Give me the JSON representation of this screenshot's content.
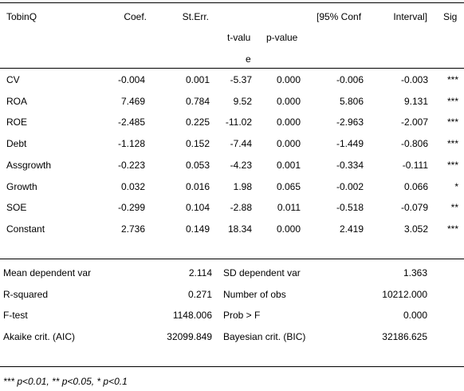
{
  "header": {
    "var": "TobinQ",
    "coef": "Coef.",
    "se": "St.Err.",
    "t_line1": "t-valu",
    "t_line2": "e",
    "p": "p-value",
    "ci_low": "[95% Conf",
    "ci_high": "Interval]",
    "sig": "Sig"
  },
  "rows": [
    {
      "name": "CV",
      "coef": "-0.004",
      "se": "0.001",
      "t": "-5.37",
      "p": "0.000",
      "lo": "-0.006",
      "hi": "-0.003",
      "sig": "***"
    },
    {
      "name": "ROA",
      "coef": "7.469",
      "se": "0.784",
      "t": "9.52",
      "p": "0.000",
      "lo": "5.806",
      "hi": "9.131",
      "sig": "***"
    },
    {
      "name": "ROE",
      "coef": "-2.485",
      "se": "0.225",
      "t": "-11.02",
      "p": "0.000",
      "lo": "-2.963",
      "hi": "-2.007",
      "sig": "***"
    },
    {
      "name": "Debt",
      "coef": "-1.128",
      "se": "0.152",
      "t": "-7.44",
      "p": "0.000",
      "lo": "-1.449",
      "hi": "-0.806",
      "sig": "***"
    },
    {
      "name": "Assgrowth",
      "coef": "-0.223",
      "se": "0.053",
      "t": "-4.23",
      "p": "0.001",
      "lo": "-0.334",
      "hi": "-0.111",
      "sig": "***"
    },
    {
      "name": "Growth",
      "coef": "0.032",
      "se": "0.016",
      "t": "1.98",
      "p": "0.065",
      "lo": "-0.002",
      "hi": "0.066",
      "sig": "*"
    },
    {
      "name": "SOE",
      "coef": "-0.299",
      "se": "0.104",
      "t": "-2.88",
      "p": "0.011",
      "lo": "-0.518",
      "hi": "-0.079",
      "sig": "**"
    },
    {
      "name": "Constant",
      "coef": "2.736",
      "se": "0.149",
      "t": "18.34",
      "p": "0.000",
      "lo": "2.419",
      "hi": "3.052",
      "sig": "***"
    }
  ],
  "stats": [
    {
      "l_label": "Mean dependent var",
      "l_val": "2.114",
      "r_label": "SD dependent var",
      "r_val": "1.363"
    },
    {
      "l_label": "R-squared",
      "l_val": "0.271",
      "r_label": "Number of obs",
      "r_val": "10212.000"
    },
    {
      "l_label": "F-test",
      "l_val": "1148.006",
      "r_label": "Prob > F",
      "r_val": "0.000"
    },
    {
      "l_label": "Akaike crit. (AIC)",
      "l_val": "32099.849",
      "r_label": "Bayesian crit. (BIC)",
      "r_val": "32186.625"
    }
  ],
  "footnote": "*** p<0.01, ** p<0.05, * p<0.1"
}
